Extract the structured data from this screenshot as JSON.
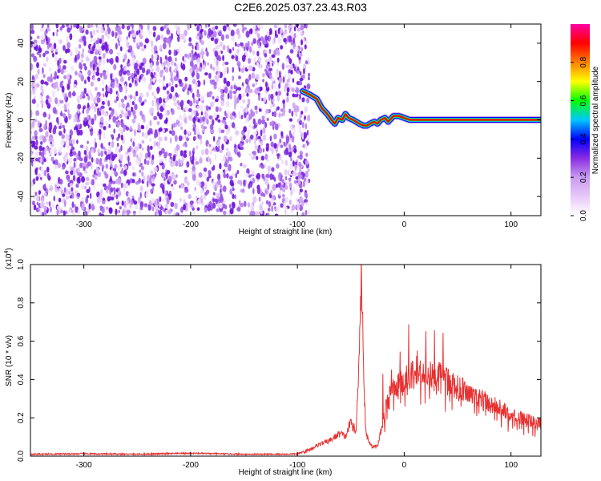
{
  "title": "C2E6.2025.037.23.43.R03",
  "chart_data": [
    {
      "type": "heatmap",
      "xlabel": "Height of straight line (km)",
      "ylabel": "Frequency (Hz)",
      "xlim": [
        -350,
        128
      ],
      "ylim": [
        -50,
        50
      ],
      "xticks": [
        -300,
        -200,
        -100,
        0,
        100
      ],
      "yticks": [
        -40,
        -20,
        0,
        20,
        40
      ],
      "noise_region_x": [
        -350,
        -95
      ],
      "ridge": {
        "x": [
          -95,
          -88,
          -82,
          -77,
          -72,
          -68,
          -65,
          -62,
          -58,
          -55,
          -52,
          -48,
          -45,
          -42,
          -38,
          -35,
          -32,
          -28,
          -25,
          -22,
          -18,
          -15,
          -10,
          -5,
          0,
          5,
          128
        ],
        "y": [
          15,
          13,
          11,
          6,
          3,
          0,
          -2,
          1,
          0,
          3,
          1,
          0,
          -1,
          -2,
          -3,
          -3,
          -2,
          -1,
          -2,
          0,
          1,
          -1,
          2,
          2,
          1,
          0,
          0
        ]
      },
      "colorbar": {
        "label": "Normalized spectral amplitude",
        "range": [
          0,
          1
        ],
        "ticks": [
          "0.0",
          "0.2",
          "0.4",
          "0.6",
          "0.8"
        ],
        "colors": [
          "#ffffff",
          "#e8c8f8",
          "#c79bf0",
          "#8a2be2",
          "#0000ff",
          "#00c8ff",
          "#00ff00",
          "#ffff00",
          "#ff8000",
          "#ff0000",
          "#ff00a0"
        ]
      }
    },
    {
      "type": "line",
      "xlabel": "Height of straight line (km)",
      "ylabel": "SNR (10 * v/v)",
      "scale_note": "(x10",
      "scale_exp": "4",
      "xlim": [
        -350,
        128
      ],
      "ylim": [
        0,
        1
      ],
      "xticks": [
        -300,
        -200,
        -100,
        0,
        100
      ],
      "yticks": [
        "0.0",
        "0.2",
        "0.4",
        "0.6",
        "0.8",
        "1.0"
      ],
      "color": "#e83030",
      "x": [
        -350,
        -300,
        -250,
        -200,
        -150,
        -110,
        -100,
        -90,
        -80,
        -70,
        -60,
        -55,
        -50,
        -45,
        -42,
        -40,
        -38,
        -36,
        -33,
        -30,
        -25,
        -20,
        -15,
        -10,
        -5,
        0,
        5,
        10,
        15,
        20,
        25,
        30,
        40,
        50,
        60,
        70,
        80,
        90,
        100,
        110,
        120,
        128
      ],
      "y": [
        0.01,
        0.012,
        0.01,
        0.015,
        0.01,
        0.01,
        0.012,
        0.03,
        0.06,
        0.08,
        0.12,
        0.1,
        0.18,
        0.12,
        0.6,
        1.0,
        0.45,
        0.12,
        0.08,
        0.05,
        0.05,
        0.18,
        0.3,
        0.36,
        0.38,
        0.4,
        0.42,
        0.44,
        0.46,
        0.45,
        0.44,
        0.43,
        0.4,
        0.37,
        0.33,
        0.3,
        0.28,
        0.25,
        0.22,
        0.2,
        0.18,
        0.17
      ]
    }
  ]
}
